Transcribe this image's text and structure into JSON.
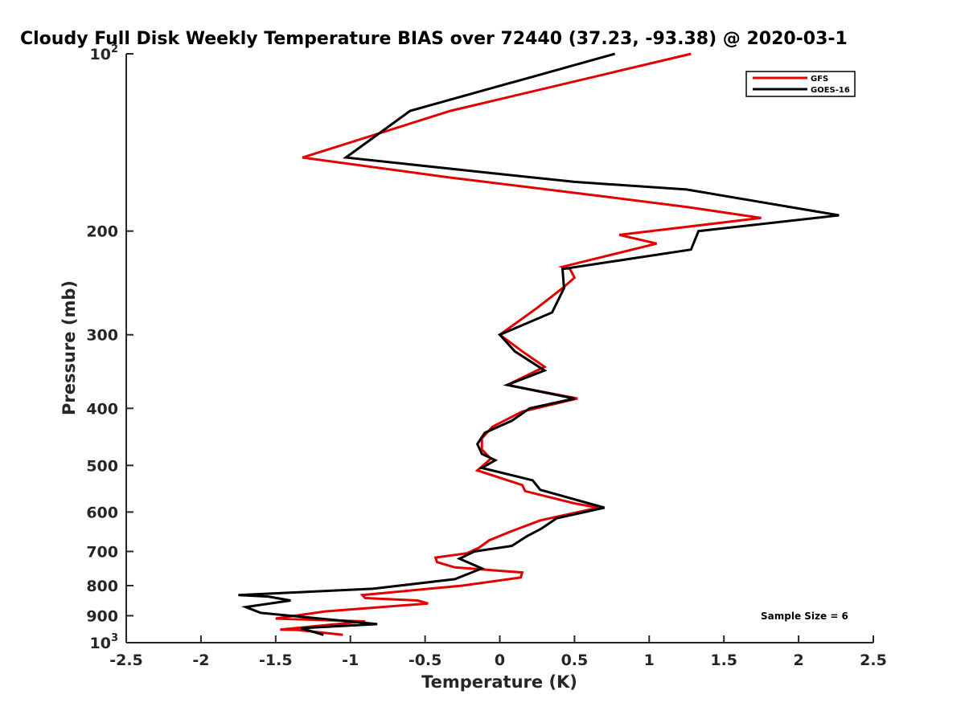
{
  "chart_data": {
    "type": "line",
    "title": "Cloudy Full Disk Weekly Temperature BIAS over 72440 (37.23, -93.38) @ 2020-03-1",
    "xlabel": "Temperature (K)",
    "ylabel": "Pressure (mb)",
    "xlim": [
      -2.5,
      2.5
    ],
    "ylim": [
      100,
      1000
    ],
    "y_scale": "log",
    "y_reversed": true,
    "x_ticks": [
      -2.5,
      -2,
      -1.5,
      -1,
      -0.5,
      0,
      0.5,
      1,
      1.5,
      2,
      2.5
    ],
    "x_tick_labels": [
      "-2.5",
      "-2",
      "-1.5",
      "-1",
      "-0.5",
      "0",
      "0.5",
      "1",
      "1.5",
      "2",
      "2.5"
    ],
    "y_ticks": [
      100,
      200,
      300,
      400,
      500,
      600,
      700,
      800,
      900,
      1000
    ],
    "y_tick_labels": [
      {
        "base": "10",
        "exp": "2"
      },
      {
        "base": "200",
        "exp": ""
      },
      {
        "base": "300",
        "exp": ""
      },
      {
        "base": "400",
        "exp": ""
      },
      {
        "base": "500",
        "exp": ""
      },
      {
        "base": "600",
        "exp": ""
      },
      {
        "base": "700",
        "exp": ""
      },
      {
        "base": "800",
        "exp": ""
      },
      {
        "base": "900",
        "exp": ""
      },
      {
        "base": "10",
        "exp": "3"
      }
    ],
    "grid": false,
    "legend_position": "top-right",
    "annotation": "Sample Size = 6",
    "series": [
      {
        "name": "GFS",
        "color": "#e30000",
        "points": [
          [
            1.28,
            100
          ],
          [
            -0.33,
            125
          ],
          [
            -1.32,
            150
          ],
          [
            -0.35,
            162
          ],
          [
            0.72,
            175
          ],
          [
            1.25,
            182
          ],
          [
            1.75,
            190
          ],
          [
            0.8,
            203
          ],
          [
            1.05,
            210
          ],
          [
            0.42,
            230
          ],
          [
            0.47,
            232
          ],
          [
            0.5,
            240
          ],
          [
            0.42,
            250
          ],
          [
            0.25,
            270
          ],
          [
            0.0,
            300
          ],
          [
            0.15,
            320
          ],
          [
            0.3,
            340
          ],
          [
            0.05,
            365
          ],
          [
            0.52,
            385
          ],
          [
            0.15,
            405
          ],
          [
            -0.05,
            430
          ],
          [
            -0.12,
            450
          ],
          [
            -0.12,
            470
          ],
          [
            -0.06,
            487
          ],
          [
            -0.15,
            510
          ],
          [
            0.15,
            540
          ],
          [
            0.17,
            553
          ],
          [
            0.5,
            580
          ],
          [
            0.66,
            590
          ],
          [
            0.27,
            620
          ],
          [
            0.07,
            648
          ],
          [
            -0.07,
            670
          ],
          [
            -0.14,
            690
          ],
          [
            -0.22,
            705
          ],
          [
            -0.43,
            717
          ],
          [
            -0.42,
            730
          ],
          [
            -0.3,
            745
          ],
          [
            0.15,
            760
          ],
          [
            0.14,
            775
          ],
          [
            -0.25,
            800
          ],
          [
            -0.92,
            830
          ],
          [
            -0.9,
            840
          ],
          [
            -0.55,
            848
          ],
          [
            -0.48,
            858
          ],
          [
            -1.17,
            885
          ],
          [
            -1.5,
            910
          ],
          [
            -0.9,
            920
          ],
          [
            -1.47,
            950
          ],
          [
            -1.35,
            952
          ],
          [
            -1.05,
            970
          ]
        ]
      },
      {
        "name": "GOES-16",
        "color": "#000000",
        "points": [
          [
            0.77,
            100
          ],
          [
            -0.6,
            125
          ],
          [
            -1.03,
            150
          ],
          [
            -0.2,
            158
          ],
          [
            0.5,
            165
          ],
          [
            1.25,
            170
          ],
          [
            2.27,
            188
          ],
          [
            1.33,
            200
          ],
          [
            1.28,
            215
          ],
          [
            0.42,
            232
          ],
          [
            0.43,
            250
          ],
          [
            0.35,
            275
          ],
          [
            0.0,
            300
          ],
          [
            0.1,
            320
          ],
          [
            0.3,
            345
          ],
          [
            0.05,
            365
          ],
          [
            0.5,
            385
          ],
          [
            0.2,
            400
          ],
          [
            0.08,
            420
          ],
          [
            -0.1,
            440
          ],
          [
            -0.15,
            460
          ],
          [
            -0.12,
            478
          ],
          [
            -0.03,
            490
          ],
          [
            -0.12,
            505
          ],
          [
            0.22,
            530
          ],
          [
            0.27,
            550
          ],
          [
            0.7,
            590
          ],
          [
            0.38,
            615
          ],
          [
            0.28,
            640
          ],
          [
            0.18,
            660
          ],
          [
            0.08,
            685
          ],
          [
            -0.17,
            700
          ],
          [
            -0.27,
            720
          ],
          [
            -0.12,
            748
          ],
          [
            -0.3,
            780
          ],
          [
            -0.85,
            810
          ],
          [
            -1.75,
            830
          ],
          [
            -1.55,
            835
          ],
          [
            -1.4,
            848
          ],
          [
            -1.7,
            870
          ],
          [
            -1.6,
            890
          ],
          [
            -0.82,
            930
          ],
          [
            -1.33,
            945
          ],
          [
            -1.18,
            970
          ]
        ]
      }
    ]
  }
}
